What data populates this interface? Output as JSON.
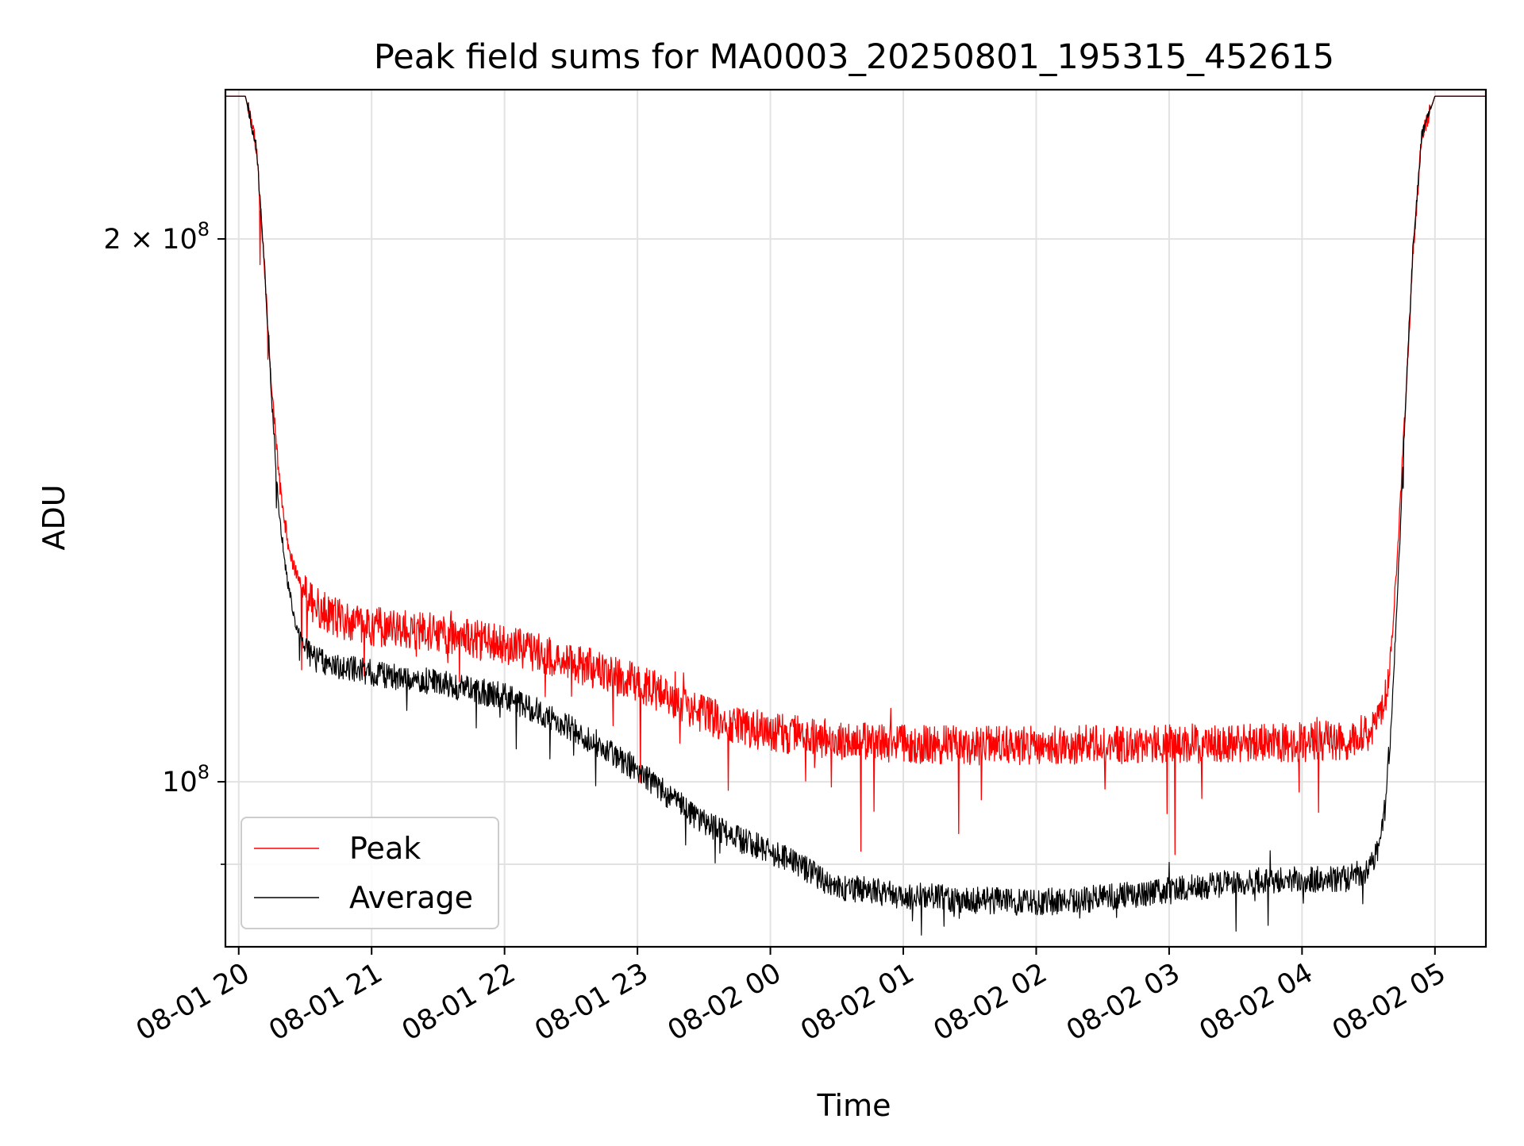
{
  "chart_data": {
    "type": "line",
    "title": "Peak field sums for MA0003_20250801_195315_452615",
    "xlabel": "Time",
    "ylabel": "ADU",
    "y_scale": "log",
    "ylim": [
      81000000,
      242000000
    ],
    "xlim": [
      "2025-08-01 19:54",
      "2025-08-02 05:23"
    ],
    "x_ticks": [
      "08-01 20",
      "08-01 21",
      "08-01 22",
      "08-01 23",
      "08-02 00",
      "08-02 01",
      "08-02 02",
      "08-02 03",
      "08-02 04",
      "08-02 05"
    ],
    "y_ticks": [
      {
        "label_base": "10",
        "label_exp": "8",
        "value": 100000000
      },
      {
        "label_base": "2 × 10",
        "label_exp": "8",
        "value": 200000000
      }
    ],
    "grid": true,
    "legend_position": "lower-left",
    "series": [
      {
        "name": "Peak",
        "color": "#ff0000",
        "x": [
          "2025-08-01 19:53",
          "2025-08-01 20:03",
          "2025-08-01 20:08",
          "2025-08-01 20:12",
          "2025-08-01 20:15",
          "2025-08-01 20:18",
          "2025-08-01 20:22",
          "2025-08-01 20:26",
          "2025-08-01 20:30",
          "2025-08-01 20:35",
          "2025-08-01 20:40",
          "2025-08-01 20:50",
          "2025-08-01 21:00",
          "2025-08-01 21:15",
          "2025-08-01 21:30",
          "2025-08-01 21:45",
          "2025-08-01 22:00",
          "2025-08-01 22:15",
          "2025-08-01 22:30",
          "2025-08-01 22:45",
          "2025-08-01 23:00",
          "2025-08-01 23:15",
          "2025-08-01 23:30",
          "2025-08-01 23:45",
          "2025-08-02 00:00",
          "2025-08-02 00:15",
          "2025-08-02 00:30",
          "2025-08-02 01:00",
          "2025-08-02 01:30",
          "2025-08-02 02:00",
          "2025-08-02 02:30",
          "2025-08-02 03:00",
          "2025-08-02 03:30",
          "2025-08-02 04:00",
          "2025-08-02 04:20",
          "2025-08-02 04:30",
          "2025-08-02 04:35",
          "2025-08-02 04:38",
          "2025-08-02 04:41",
          "2025-08-02 04:44",
          "2025-08-02 04:47",
          "2025-08-02 04:50",
          "2025-08-02 04:54",
          "2025-08-02 05:00",
          "2025-08-02 05:23"
        ],
        "values": [
          240000000,
          240000000,
          225000000,
          190000000,
          165000000,
          148000000,
          136000000,
          130000000,
          127000000,
          125000000,
          124000000,
          122500000,
          122000000,
          121500000,
          121000000,
          120000000,
          119000000,
          118000000,
          116500000,
          115000000,
          113500000,
          111500000,
          109000000,
          107500000,
          106500000,
          106000000,
          105500000,
          105000000,
          104800000,
          104700000,
          104900000,
          105000000,
          105000000,
          105200000,
          105500000,
          106500000,
          108000000,
          112000000,
          122000000,
          140000000,
          165000000,
          195000000,
          228000000,
          240000000,
          240000000
        ]
      },
      {
        "name": "Average",
        "color": "#000000",
        "x": [
          "2025-08-01 19:53",
          "2025-08-01 20:03",
          "2025-08-01 20:08",
          "2025-08-01 20:12",
          "2025-08-01 20:15",
          "2025-08-01 20:18",
          "2025-08-01 20:22",
          "2025-08-01 20:26",
          "2025-08-01 20:30",
          "2025-08-01 20:35",
          "2025-08-01 20:40",
          "2025-08-01 20:50",
          "2025-08-01 21:00",
          "2025-08-01 21:15",
          "2025-08-01 21:30",
          "2025-08-01 21:45",
          "2025-08-01 22:00",
          "2025-08-01 22:15",
          "2025-08-01 22:30",
          "2025-08-01 22:45",
          "2025-08-01 23:00",
          "2025-08-01 23:15",
          "2025-08-01 23:30",
          "2025-08-01 23:45",
          "2025-08-02 00:00",
          "2025-08-02 00:15",
          "2025-08-02 00:30",
          "2025-08-02 01:00",
          "2025-08-02 01:30",
          "2025-08-02 02:00",
          "2025-08-02 02:30",
          "2025-08-02 03:00",
          "2025-08-02 03:30",
          "2025-08-02 04:00",
          "2025-08-02 04:20",
          "2025-08-02 04:30",
          "2025-08-02 04:35",
          "2025-08-02 04:38",
          "2025-08-02 04:41",
          "2025-08-02 04:44",
          "2025-08-02 04:47",
          "2025-08-02 04:50",
          "2025-08-02 04:54",
          "2025-08-02 05:00",
          "2025-08-02 05:23"
        ],
        "values": [
          240000000,
          240000000,
          225000000,
          190000000,
          162000000,
          142000000,
          129000000,
          122000000,
          118500000,
          117000000,
          116000000,
          115500000,
          115000000,
          114200000,
          113500000,
          112500000,
          111500000,
          109500000,
          107000000,
          104500000,
          101500000,
          98000000,
          95000000,
          93000000,
          91500000,
          89500000,
          87500000,
          86500000,
          86000000,
          85700000,
          86200000,
          87000000,
          88000000,
          88300000,
          88300000,
          89500000,
          92000000,
          98000000,
          112000000,
          135000000,
          165000000,
          197000000,
          228000000,
          240000000,
          240000000
        ]
      }
    ]
  }
}
